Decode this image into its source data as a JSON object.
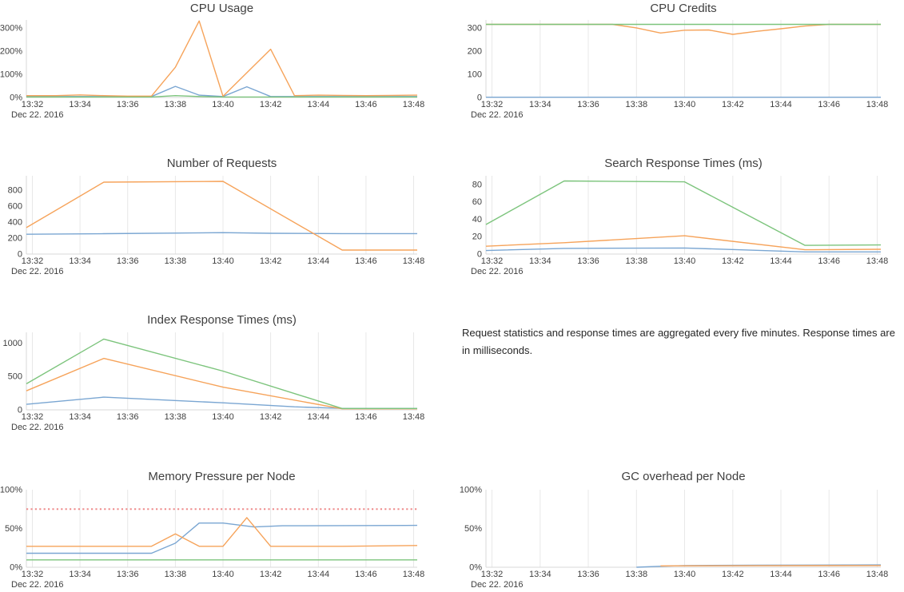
{
  "palette": {
    "blue": "#7aa6d2",
    "orange": "#f6a35a",
    "green": "#7cc47c",
    "red": "#ee8c8c",
    "grid": "#e8e8e8",
    "axis": "#d9d9d9",
    "text": "#3f3f3f"
  },
  "date_label": "Dec 22. 2016",
  "x_tick_labels": [
    "13:32",
    "13:34",
    "13:36",
    "13:38",
    "13:40",
    "13:42",
    "13:44",
    "13:46",
    "13:48"
  ],
  "note": {
    "text": "Request statistics and response times are aggregated every five minutes. Response times are in milliseconds."
  },
  "chart_data": [
    {
      "type": "line",
      "title": "CPU Usage",
      "unit": "%",
      "yticks": [
        0,
        100,
        200,
        300
      ],
      "ymax": 334,
      "grid": false,
      "xlabel": "Dec 22. 2016",
      "x_axis": "time 13:32 - 13:48, ticks every 2 minutes",
      "series": [
        {
          "color": "blue",
          "points": [
            [
              -0.25,
              4
            ],
            [
              5,
              4
            ],
            [
              6,
              48
            ],
            [
              7,
              10
            ],
            [
              8,
              4
            ],
            [
              9,
              46
            ],
            [
              10,
              4
            ],
            [
              16.15,
              4
            ]
          ]
        },
        {
          "color": "orange",
          "points": [
            [
              -0.25,
              8
            ],
            [
              1,
              8
            ],
            [
              2,
              11
            ],
            [
              3,
              8
            ],
            [
              4,
              6
            ],
            [
              5,
              6
            ],
            [
              6,
              130
            ],
            [
              7,
              330
            ],
            [
              8,
              5
            ],
            [
              10,
              208
            ],
            [
              11,
              8
            ],
            [
              12,
              10
            ],
            [
              13,
              9
            ],
            [
              14,
              8
            ],
            [
              15,
              9
            ],
            [
              16.15,
              10
            ]
          ]
        },
        {
          "color": "green",
          "points": [
            [
              -0.25,
              2
            ],
            [
              5,
              2
            ],
            [
              6,
              8
            ],
            [
              7,
              4
            ],
            [
              8,
              2
            ],
            [
              16.15,
              2
            ]
          ]
        }
      ]
    },
    {
      "type": "line",
      "title": "CPU Credits",
      "unit": "",
      "yticks": [
        0,
        100,
        200,
        300
      ],
      "ymax": 334,
      "grid": true,
      "xlabel": "Dec 22. 2016",
      "x_axis": "time 13:32 - 13:48, ticks every 2 minutes",
      "series": [
        {
          "color": "blue",
          "points": [
            [
              -0.25,
              1
            ],
            [
              16.15,
              1
            ]
          ]
        },
        {
          "color": "orange",
          "points": [
            [
              -0.25,
              315
            ],
            [
              5,
              315
            ],
            [
              6,
              300
            ],
            [
              7,
              278
            ],
            [
              8,
              290
            ],
            [
              9,
              291
            ],
            [
              10,
              272
            ],
            [
              11,
              285
            ],
            [
              12,
              296
            ],
            [
              13,
              308
            ],
            [
              14,
              315
            ],
            [
              16.15,
              315
            ]
          ]
        },
        {
          "color": "green",
          "points": [
            [
              -0.25,
              315
            ],
            [
              16.15,
              315
            ]
          ]
        }
      ]
    },
    {
      "type": "line",
      "title": "Number of Requests",
      "unit": "",
      "yticks": [
        0,
        200,
        400,
        600,
        800
      ],
      "ymax": 980,
      "grid": true,
      "xlabel": "Dec 22. 2016",
      "x_axis": "time 13:32 - 13:48, ticks every 2 minutes",
      "series": [
        {
          "color": "blue",
          "points": [
            [
              -0.25,
              248
            ],
            [
              3,
              255
            ],
            [
              8,
              268
            ],
            [
              10,
              260
            ],
            [
              13,
              256
            ],
            [
              16.15,
              256
            ]
          ]
        },
        {
          "color": "orange",
          "points": [
            [
              -0.25,
              331
            ],
            [
              3,
              900
            ],
            [
              8,
              910
            ],
            [
              13,
              50
            ],
            [
              16.15,
              50
            ]
          ]
        }
      ]
    },
    {
      "type": "line",
      "title": "Search Response Times (ms)",
      "unit": "",
      "yticks": [
        0,
        20,
        40,
        60,
        80
      ],
      "ymax": 90,
      "grid": true,
      "xlabel": "Dec 22. 2016",
      "x_axis": "time 13:32 - 13:48, ticks every 2 minutes",
      "series": [
        {
          "color": "blue",
          "points": [
            [
              -0.25,
              4
            ],
            [
              3,
              6.5
            ],
            [
              8,
              7
            ],
            [
              13,
              2.5
            ],
            [
              16.15,
              2.5
            ]
          ]
        },
        {
          "color": "orange",
          "points": [
            [
              -0.25,
              9
            ],
            [
              3,
              13
            ],
            [
              8,
              21
            ],
            [
              13,
              5
            ],
            [
              16.15,
              5.5
            ]
          ]
        },
        {
          "color": "green",
          "points": [
            [
              -0.25,
              34
            ],
            [
              3,
              84
            ],
            [
              8,
              83
            ],
            [
              13,
              10
            ],
            [
              16.15,
              10.5
            ]
          ]
        }
      ]
    },
    {
      "type": "line",
      "title": "Index Response Times (ms)",
      "unit": "",
      "yticks": [
        0,
        500,
        1000
      ],
      "ymax": 1160,
      "grid": true,
      "xlabel": "Dec 22. 2016",
      "x_axis": "time 13:32 - 13:48, ticks every 2 minutes",
      "series": [
        {
          "color": "blue",
          "points": [
            [
              -0.25,
              82
            ],
            [
              3,
              190
            ],
            [
              8,
              105
            ],
            [
              11,
              45
            ],
            [
              13,
              22
            ],
            [
              16.15,
              22
            ]
          ]
        },
        {
          "color": "orange",
          "points": [
            [
              -0.25,
              285
            ],
            [
              3,
              770
            ],
            [
              8,
              340
            ],
            [
              13,
              15
            ],
            [
              16.15,
              15
            ]
          ]
        },
        {
          "color": "green",
          "points": [
            [
              -0.25,
              390
            ],
            [
              3,
              1060
            ],
            [
              8,
              580
            ],
            [
              13,
              20
            ],
            [
              16.15,
              20
            ]
          ]
        }
      ]
    },
    {
      "type": "line",
      "title": "Memory Pressure per Node",
      "unit": "%",
      "yticks": [
        0,
        50,
        100
      ],
      "ymax": 100,
      "grid": true,
      "xlabel": "Dec 22. 2016",
      "x_axis": "time 13:32 - 13:48, ticks every 2 minutes",
      "series": [
        {
          "color": "blue",
          "points": [
            [
              -0.25,
              18
            ],
            [
              5,
              18
            ],
            [
              6,
              31
            ],
            [
              7,
              57
            ],
            [
              8,
              57
            ],
            [
              9.3,
              52
            ],
            [
              10.5,
              53.5
            ],
            [
              16.15,
              54
            ]
          ]
        },
        {
          "color": "orange",
          "points": [
            [
              -0.25,
              27
            ],
            [
              5,
              27
            ],
            [
              6,
              43
            ],
            [
              7,
              27
            ],
            [
              8,
              27
            ],
            [
              9,
              64
            ],
            [
              10,
              27
            ],
            [
              13,
              27
            ],
            [
              16.15,
              28
            ]
          ]
        },
        {
          "color": "green",
          "points": [
            [
              -0.25,
              9.5
            ],
            [
              16.15,
              9.5
            ]
          ]
        },
        {
          "color": "red",
          "dash": true,
          "points": [
            [
              -0.25,
              75
            ],
            [
              16.15,
              75
            ]
          ]
        }
      ]
    },
    {
      "type": "line",
      "title": "GC overhead per Node",
      "unit": "%",
      "yticks": [
        0,
        50,
        100
      ],
      "ymax": 100,
      "grid": true,
      "xlabel": "Dec 22. 2016",
      "x_axis": "time 13:32 - 13:48, ticks every 2 minutes",
      "series": [
        {
          "color": "blue",
          "points": [
            [
              6,
              0
            ],
            [
              7,
              1.2
            ],
            [
              8,
              2.2
            ],
            [
              11,
              2.6
            ],
            [
              16.15,
              3
            ]
          ]
        },
        {
          "color": "orange",
          "points": [
            [
              7,
              1.8
            ],
            [
              11,
              2
            ],
            [
              16.15,
              2.2
            ]
          ]
        }
      ]
    }
  ]
}
